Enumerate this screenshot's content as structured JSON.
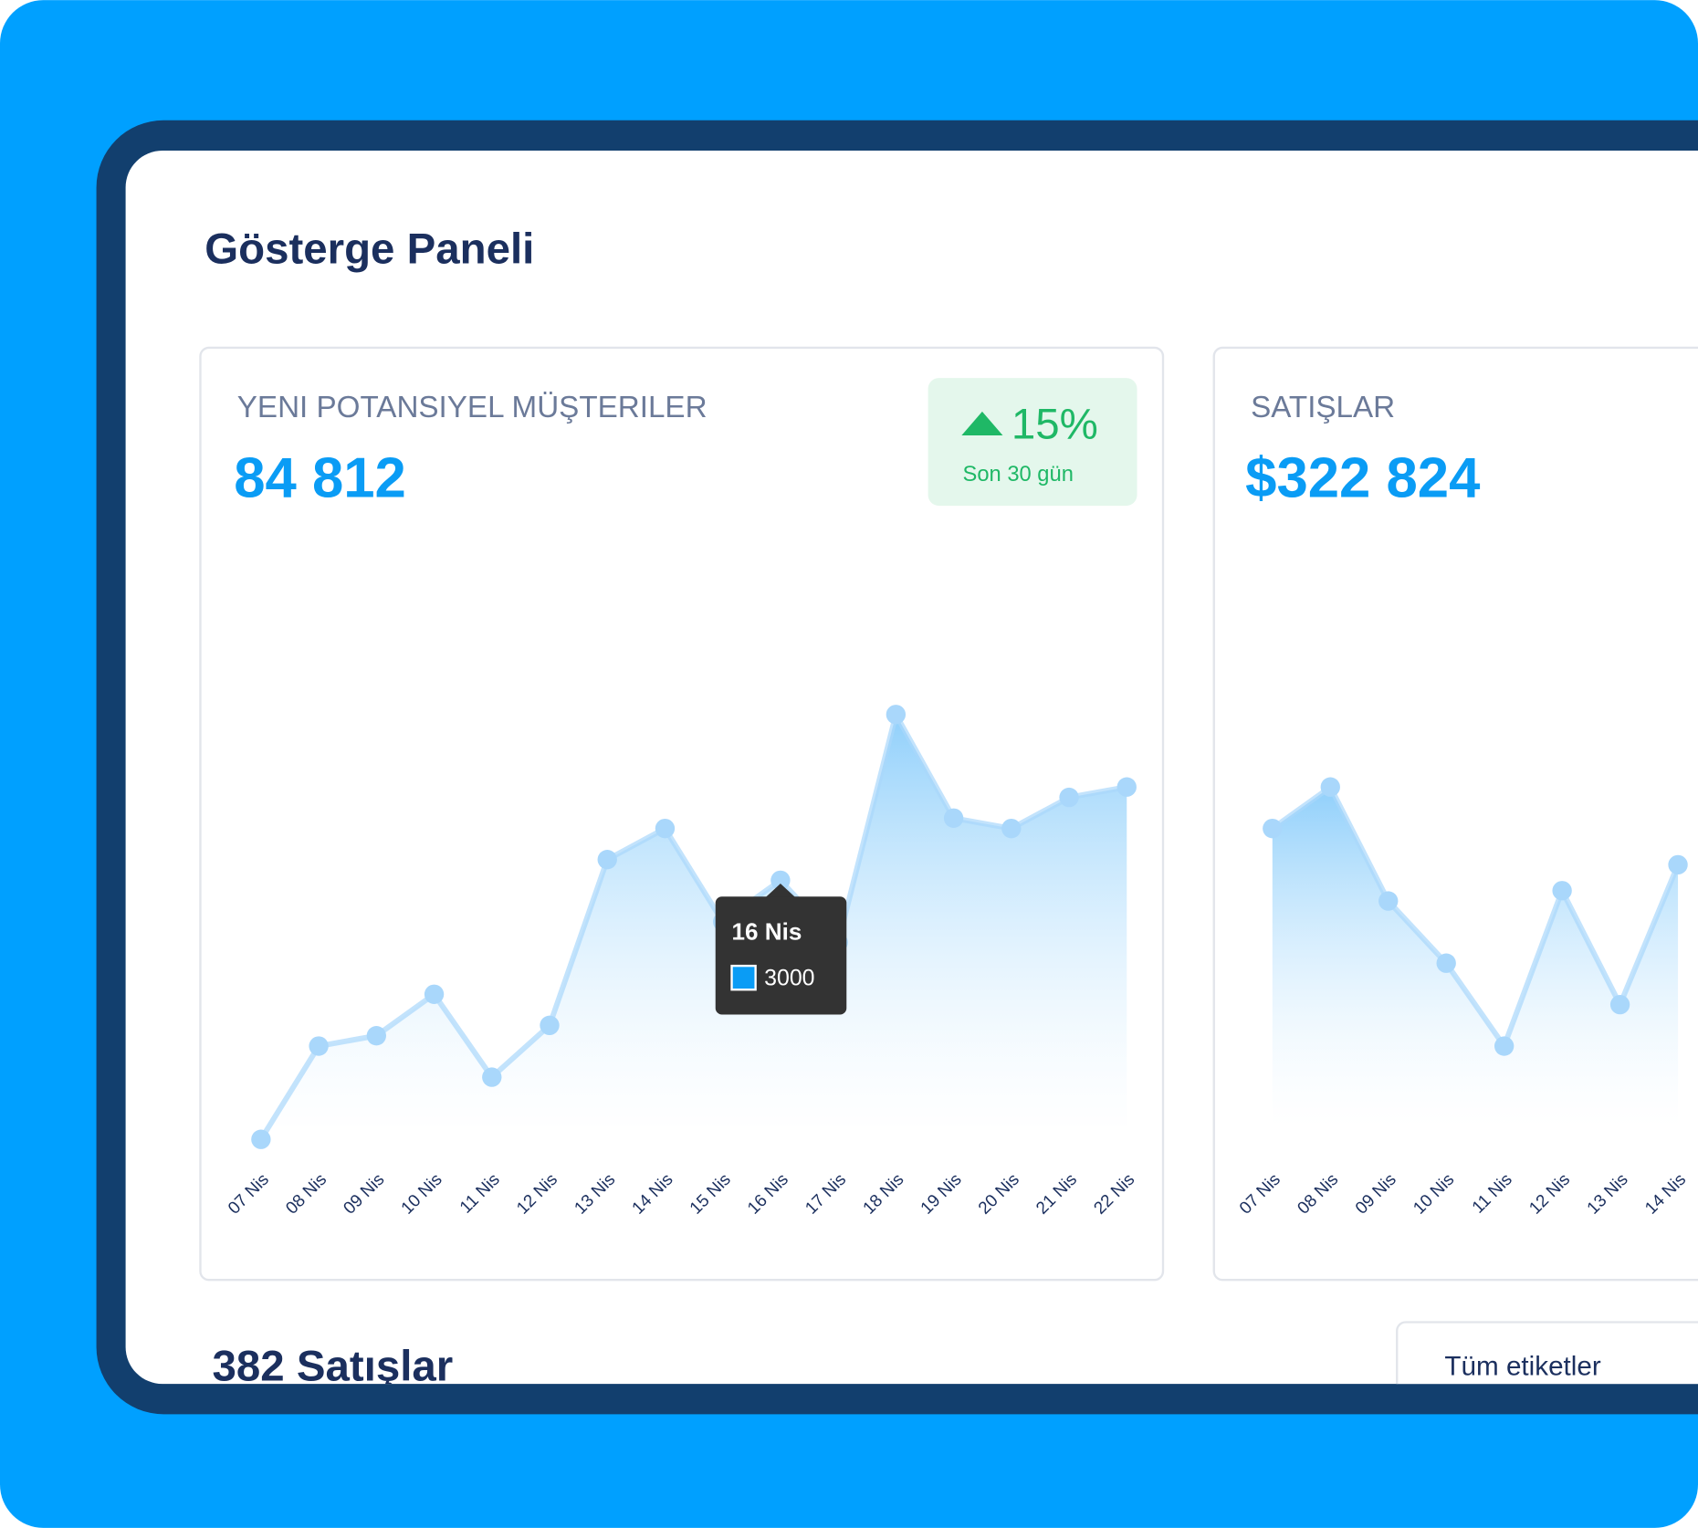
{
  "header": {
    "title": "Gösterge Paneli"
  },
  "cards": [
    {
      "label": "YENI POTANSIYEL MÜŞTERILER",
      "value": "84 812",
      "change": {
        "value": "15%",
        "period": "Son 30 gün"
      }
    },
    {
      "label": "SATIŞLAR",
      "value": "$322 824"
    }
  ],
  "chart_data": [
    {
      "type": "area",
      "color": "#a9d7fb",
      "categories": [
        "07 Nis",
        "08 Nis",
        "09 Nis",
        "10 Nis",
        "11 Nis",
        "12 Nis",
        "13 Nis",
        "14 Nis",
        "15 Nis",
        "16 Nis",
        "17 Nis",
        "18 Nis",
        "19 Nis",
        "20 Nis",
        "21 Nis",
        "22 Nis"
      ],
      "values": [
        500,
        1400,
        1500,
        1900,
        1100,
        1600,
        3200,
        3500,
        2600,
        3000,
        2400,
        4600,
        3600,
        3500,
        3800,
        3900
      ]
    },
    {
      "type": "area",
      "color": "#a9d7fb",
      "categories": [
        "07 Nis",
        "08 Nis",
        "09 Nis",
        "10 Nis",
        "11 Nis",
        "12 Nis",
        "13 Nis",
        "14 Nis"
      ],
      "values": [
        3500,
        3900,
        2800,
        2200,
        1400,
        2900,
        1800,
        3150
      ]
    }
  ],
  "footer": {
    "title": "382 Satışlar",
    "filter": "Tüm etiketler"
  }
}
